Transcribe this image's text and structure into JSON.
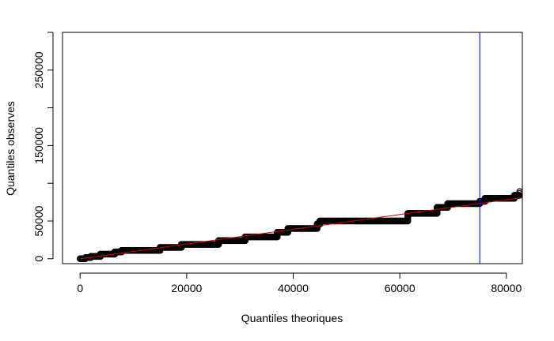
{
  "chart_data": {
    "type": "scatter",
    "title": "",
    "xlabel": "Quantiles theoriques",
    "ylabel": "Quantiles observes",
    "xlim": [
      -3300,
      83000
    ],
    "ylim": [
      -6500,
      300000
    ],
    "xticks": [
      0,
      20000,
      40000,
      60000,
      80000
    ],
    "yticks": [
      0,
      50000,
      150000,
      250000
    ],
    "xtick_labels": [
      "0",
      "20000",
      "40000",
      "60000",
      "80000"
    ],
    "ytick_labels": [
      "0",
      "50000",
      "150000",
      "250000"
    ],
    "grid": false,
    "legend": "none",
    "points_step_profile": [
      [
        0,
        0
      ],
      [
        1000,
        0
      ],
      [
        1000,
        1500
      ],
      [
        2000,
        1500
      ],
      [
        2000,
        3000
      ],
      [
        3800,
        3000
      ],
      [
        3800,
        6000
      ],
      [
        6500,
        6000
      ],
      [
        6500,
        9000
      ],
      [
        7800,
        9000
      ],
      [
        7800,
        11000
      ],
      [
        15000,
        11000
      ],
      [
        15000,
        15000
      ],
      [
        19000,
        15000
      ],
      [
        19000,
        19000
      ],
      [
        26000,
        19000
      ],
      [
        26000,
        24000
      ],
      [
        31000,
        24000
      ],
      [
        31000,
        29000
      ],
      [
        37000,
        29000
      ],
      [
        37000,
        35000
      ],
      [
        39000,
        35000
      ],
      [
        39000,
        40000
      ],
      [
        44500,
        40000
      ],
      [
        44500,
        46000
      ],
      [
        45000,
        46000
      ],
      [
        45000,
        50000
      ],
      [
        61500,
        50000
      ],
      [
        61500,
        60000
      ],
      [
        67000,
        60000
      ],
      [
        67000,
        68000
      ],
      [
        69000,
        68000
      ],
      [
        69000,
        73000
      ],
      [
        75000,
        73000
      ],
      [
        75000,
        76000
      ],
      [
        76000,
        76000
      ],
      [
        76000,
        80000
      ],
      [
        81500,
        80000
      ],
      [
        81500,
        84000
      ],
      [
        82500,
        84000
      ],
      [
        82500,
        89000
      ]
    ],
    "reference_line": {
      "x": [
        0,
        83000
      ],
      "y": [
        0,
        81000
      ],
      "color": "#cc0000"
    },
    "vertical_line": {
      "x": 75000,
      "color": "#0000ff"
    },
    "point_color": "#000000"
  }
}
